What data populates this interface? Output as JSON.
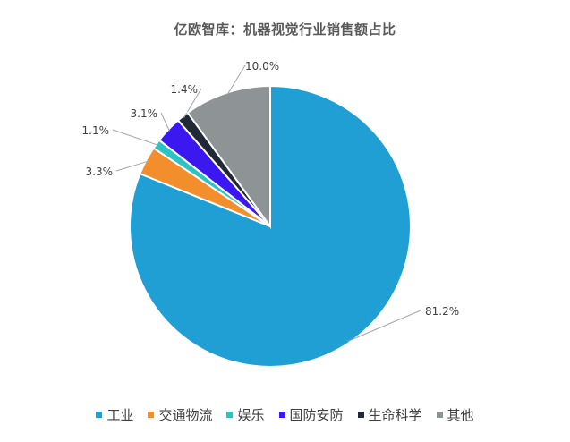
{
  "chart_data": {
    "type": "pie",
    "title": "亿欧智库：机器视觉行业销售额占比",
    "categories": [
      "工业",
      "交通物流",
      "娱乐",
      "国防安防",
      "生命科学",
      "其他"
    ],
    "values": [
      81.2,
      3.3,
      1.1,
      3.1,
      1.4,
      10.0
    ],
    "data_labels": [
      "81.2%",
      "3.3%",
      "1.1%",
      "3.1%",
      "1.4%",
      "10.0%"
    ],
    "colors": [
      "#1F9FD4",
      "#F28E2B",
      "#2BC3C3",
      "#3B18F0",
      "#1F2A36",
      "#8E9396"
    ],
    "start_angle_deg": 0,
    "direction": "clockwise",
    "legend_position": "bottom"
  }
}
